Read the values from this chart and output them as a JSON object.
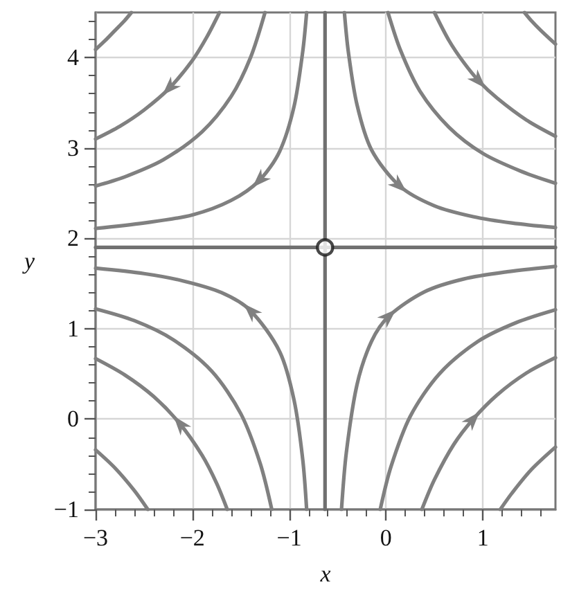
{
  "chart_data": {
    "type": "line",
    "xlabel": "x",
    "ylabel": "y",
    "xlim": [
      -3,
      1.75
    ],
    "ylim": [
      -1,
      4.5
    ],
    "xticks": [
      -3,
      {
        "value": -2.8,
        "label": null
      },
      {
        "value": -2.6,
        "label": null
      },
      {
        "value": -2.4,
        "label": null
      },
      {
        "value": -2.2,
        "label": null
      },
      -2,
      {
        "value": -1.8,
        "label": null
      },
      {
        "value": -1.6,
        "label": null
      },
      {
        "value": -1.4,
        "label": null
      },
      {
        "value": -1.2,
        "label": null
      },
      -1,
      {
        "value": -0.8,
        "label": null
      },
      {
        "value": -0.6,
        "label": null
      },
      {
        "value": -0.4,
        "label": null
      },
      {
        "value": -0.2,
        "label": null
      },
      0,
      {
        "value": 0.2,
        "label": null
      },
      {
        "value": 0.4,
        "label": null
      },
      {
        "value": 0.6,
        "label": null
      },
      {
        "value": 0.8,
        "label": null
      },
      1,
      {
        "value": 1.2,
        "label": null
      },
      {
        "value": 1.4,
        "label": null
      },
      {
        "value": 1.6,
        "label": null
      }
    ],
    "yticks": [
      -1,
      {
        "value": -0.8,
        "label": null
      },
      {
        "value": -0.6,
        "label": null
      },
      {
        "value": -0.4,
        "label": null
      },
      {
        "value": -0.2,
        "label": null
      },
      0,
      {
        "value": 0.2,
        "label": null
      },
      {
        "value": 0.4,
        "label": null
      },
      {
        "value": 0.6,
        "label": null
      },
      {
        "value": 0.8,
        "label": null
      },
      1,
      {
        "value": 1.2,
        "label": null
      },
      {
        "value": 1.4,
        "label": null
      },
      {
        "value": 1.6,
        "label": null
      },
      {
        "value": 1.8,
        "label": null
      },
      2,
      {
        "value": 2.2,
        "label": null
      },
      {
        "value": 2.4,
        "label": null
      },
      {
        "value": 2.6,
        "label": null
      },
      {
        "value": 2.8,
        "label": null
      },
      3,
      {
        "value": 3.2,
        "label": null
      },
      {
        "value": 3.4,
        "label": null
      },
      {
        "value": 3.6,
        "label": null
      },
      {
        "value": 3.8,
        "label": null
      },
      4,
      {
        "value": 4.2,
        "label": null
      },
      {
        "value": 4.4,
        "label": null
      }
    ],
    "grid": true,
    "marker": "none",
    "line_style": "solid",
    "series": [
      {
        "color": "#808080",
        "x": [
          -2.63,
          -2.7,
          -2.8,
          -2.9,
          -3
        ],
        "values": [
          4.5,
          4.41,
          4.3,
          4.19,
          4.09
        ]
      },
      {
        "color": "#808080",
        "x": [
          -1.72,
          -1.85,
          -2.0,
          -2.24,
          -2.5,
          -2.75,
          -3
        ],
        "values": [
          4.5,
          4.23,
          3.97,
          3.66,
          3.42,
          3.24,
          3.1
        ]
      },
      {
        "color": "#808080",
        "x": [
          -1.25,
          -1.4,
          -1.6,
          -1.9,
          -2.3,
          -2.7,
          -3
        ],
        "values": [
          4.5,
          4.0,
          3.57,
          3.18,
          2.87,
          2.68,
          2.58
        ]
      },
      {
        "color": "#808080",
        "x": [
          -0.82,
          -0.86,
          -0.95,
          -1.1,
          -1.31,
          -1.6,
          -2.0,
          -2.5,
          -3
        ],
        "values": [
          4.5,
          4.07,
          3.46,
          2.96,
          2.64,
          2.42,
          2.26,
          2.17,
          2.11
        ]
      },
      {
        "color": "#808080",
        "x": [
          1.43,
          1.5,
          1.6,
          1.75
        ],
        "values": [
          4.5,
          4.41,
          4.3,
          4.15
        ]
      },
      {
        "color": "#808080",
        "x": [
          0.5,
          0.65,
          0.8,
          0.96,
          1.15,
          1.45,
          1.75
        ],
        "values": [
          4.5,
          4.19,
          3.95,
          3.74,
          3.55,
          3.31,
          3.13
        ]
      },
      {
        "color": "#808080",
        "x": [
          0.02,
          0.15,
          0.35,
          0.65,
          1.0,
          1.4,
          1.75
        ],
        "values": [
          4.5,
          4.08,
          3.63,
          3.23,
          2.94,
          2.74,
          2.61
        ]
      },
      {
        "color": "#808080",
        "x": [
          -0.43,
          -0.39,
          -0.3,
          -0.15,
          0.14,
          0.5,
          0.9,
          1.3,
          1.75
        ],
        "values": [
          4.5,
          4.07,
          3.48,
          2.98,
          2.58,
          2.36,
          2.24,
          2.17,
          2.12
        ]
      },
      {
        "color": "#808080",
        "x": [
          -2.46,
          -2.6,
          -2.8,
          -3
        ],
        "values": [
          -1,
          -0.79,
          -0.54,
          -0.34
        ]
      },
      {
        "color": "#808080",
        "x": [
          -1.64,
          -1.75,
          -1.9,
          -2.13,
          -2.4,
          -2.7,
          -3
        ],
        "values": [
          -1,
          -0.71,
          -0.4,
          -0.05,
          0.25,
          0.49,
          0.67
        ]
      },
      {
        "color": "#808080",
        "x": [
          -1.18,
          -1.3,
          -1.5,
          -1.8,
          -2.2,
          -2.6,
          -3
        ],
        "values": [
          -1,
          -0.49,
          0.06,
          0.53,
          0.88,
          1.09,
          1.22
        ]
      },
      {
        "color": "#808080",
        "x": [
          -0.82,
          -0.86,
          -0.95,
          -1.1,
          -1.4,
          -1.7,
          -2.1,
          -2.5,
          -3
        ],
        "values": [
          -1,
          -0.45,
          0.21,
          0.75,
          1.2,
          1.4,
          1.53,
          1.61,
          1.67
        ]
      },
      {
        "color": "#808080",
        "x": [
          1.18,
          1.3,
          1.5,
          1.75
        ],
        "values": [
          -1,
          -0.82,
          -0.56,
          -0.31
        ]
      },
      {
        "color": "#808080",
        "x": [
          0.37,
          0.5,
          0.7,
          0.9,
          1.15,
          1.45,
          1.75
        ],
        "values": [
          -1,
          -0.67,
          -0.28,
          0.0,
          0.27,
          0.51,
          0.68
        ]
      },
      {
        "color": "#808080",
        "x": [
          -0.06,
          0.05,
          0.25,
          0.55,
          0.95,
          1.35,
          1.75
        ],
        "values": [
          -1,
          -0.53,
          0.03,
          0.5,
          0.86,
          1.07,
          1.21
        ]
      },
      {
        "color": "#808080",
        "x": [
          -0.46,
          -0.41,
          -0.3,
          -0.15,
          0.03,
          0.4,
          0.8,
          1.25,
          1.75
        ],
        "values": [
          -1,
          -0.37,
          0.38,
          0.86,
          1.14,
          1.41,
          1.55,
          1.63,
          1.69
        ]
      },
      {
        "color": "#707070",
        "x": [
          -0.63,
          -0.63
        ],
        "values": [
          -1,
          4.5
        ]
      },
      {
        "color": "#707070",
        "x": [
          -3,
          1.75
        ],
        "values": [
          1.9,
          1.9
        ]
      },
      {
        "type": "scatter",
        "marker": "circle",
        "color": "#1a1a1a",
        "x": [
          -0.63
        ],
        "values": [
          1.9
        ]
      }
    ]
  }
}
